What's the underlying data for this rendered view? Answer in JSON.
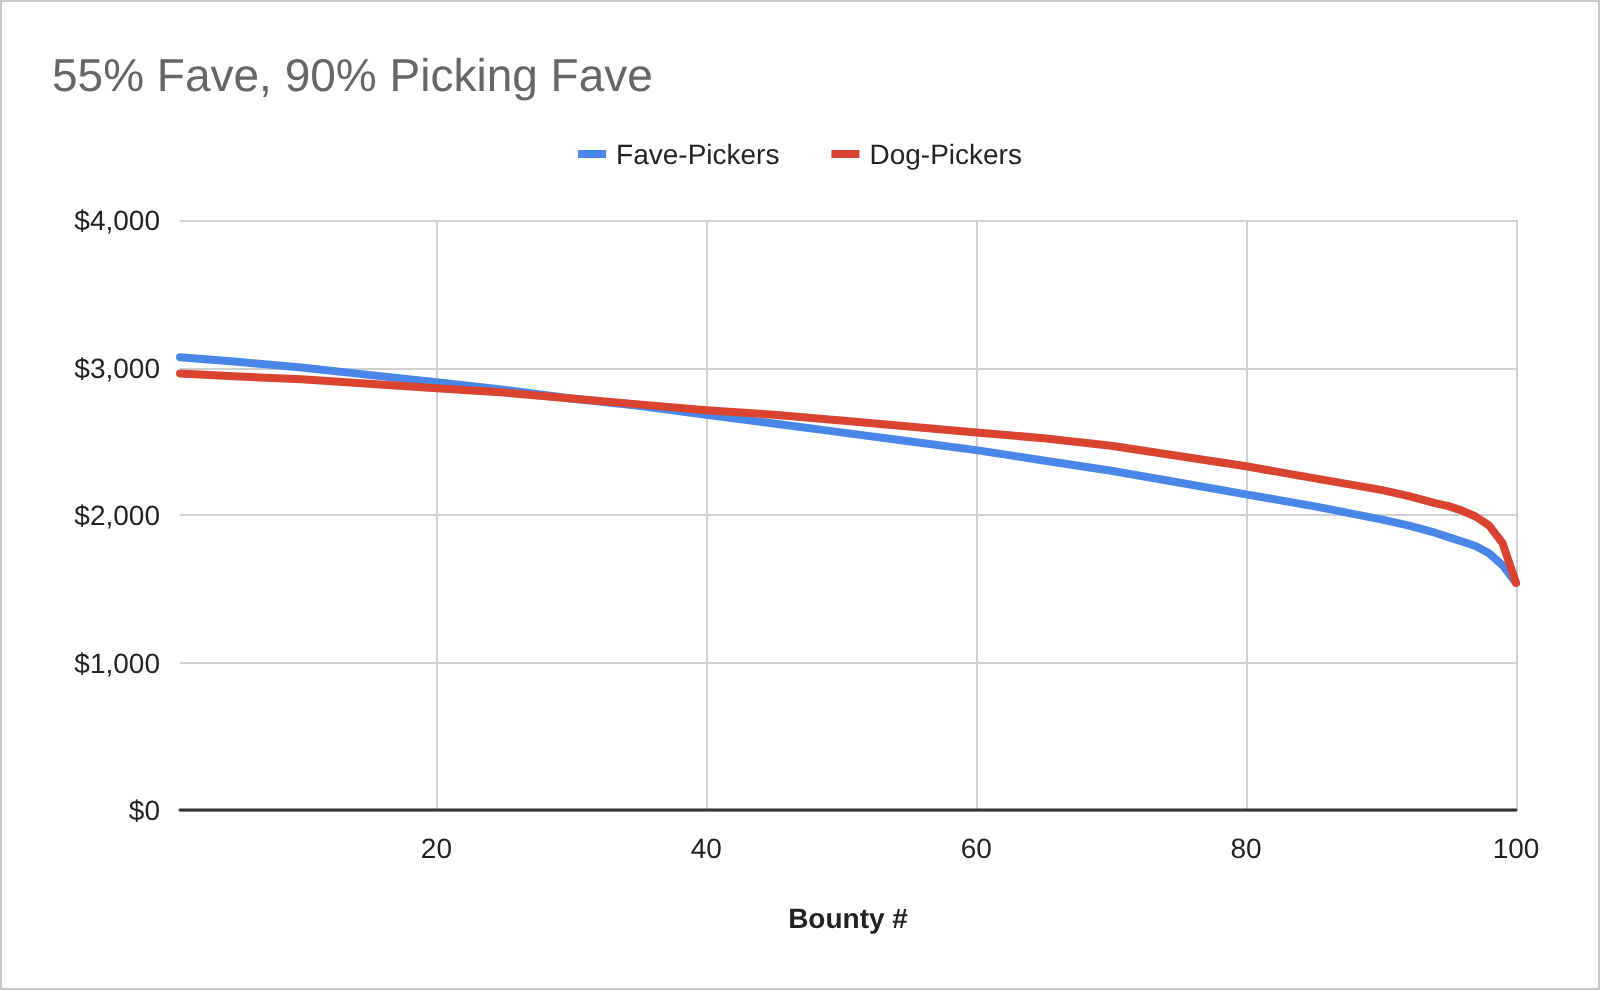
{
  "chart_data": {
    "type": "line",
    "title": "55% Fave, 90% Picking Fave",
    "xlabel": "Bounty #",
    "x": [
      1,
      5,
      10,
      15,
      20,
      25,
      30,
      35,
      40,
      45,
      50,
      55,
      60,
      65,
      70,
      75,
      80,
      85,
      90,
      92,
      94,
      95,
      96,
      97,
      98,
      99,
      100
    ],
    "series": [
      {
        "name": "Fave-Pickers",
        "color": "#4a86e8",
        "values": [
          3070,
          3040,
          3000,
          2950,
          2900,
          2850,
          2790,
          2740,
          2680,
          2620,
          2560,
          2500,
          2440,
          2370,
          2300,
          2220,
          2140,
          2060,
          1970,
          1930,
          1880,
          1850,
          1820,
          1790,
          1740,
          1660,
          1540
        ]
      },
      {
        "name": "Dog-Pickers",
        "color": "#d9432f",
        "values": [
          2960,
          2940,
          2920,
          2890,
          2860,
          2830,
          2790,
          2750,
          2710,
          2680,
          2640,
          2600,
          2560,
          2520,
          2470,
          2400,
          2330,
          2250,
          2170,
          2130,
          2080,
          2060,
          2030,
          1990,
          1930,
          1810,
          1540
        ]
      }
    ],
    "xlim": [
      1,
      100
    ],
    "xticks": [
      20,
      40,
      60,
      80,
      100
    ],
    "ylim": [
      0,
      4000
    ],
    "yticks": [
      {
        "value": 0,
        "label": "$0"
      },
      {
        "value": 1000,
        "label": "$1,000"
      },
      {
        "value": 2000,
        "label": "$2,000"
      },
      {
        "value": 3000,
        "label": "$3,000"
      },
      {
        "value": 4000,
        "label": "$4,000"
      }
    ],
    "grid": true,
    "legend": "top",
    "marker": "none"
  }
}
